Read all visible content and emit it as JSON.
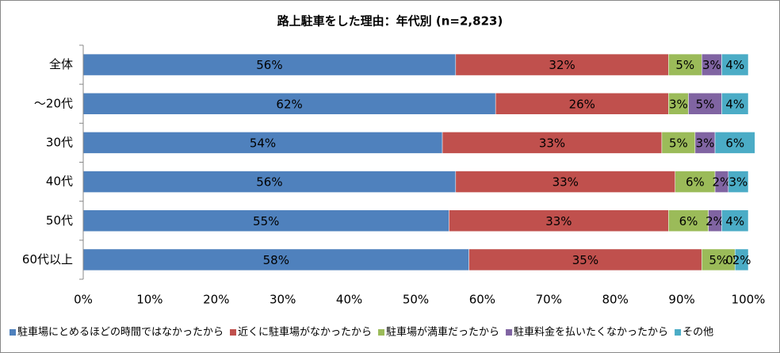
{
  "chart_data": {
    "type": "stacked-barh",
    "title": "路上駐車をした理由：年代別 (n=2,823)",
    "categories": [
      "全体",
      "～20代",
      "30代",
      "40代",
      "50代",
      "60代以上"
    ],
    "series": [
      {
        "name": "駐車場にとめるほどの時間ではなかったから",
        "color": "#4f81bd",
        "values": [
          56,
          62,
          54,
          56,
          55,
          58
        ],
        "value_labels": [
          "56%",
          "62%",
          "54%",
          "56%",
          "55%",
          "58%"
        ]
      },
      {
        "name": "近くに駐車場がなかったから",
        "color": "#c0504d",
        "values": [
          32,
          26,
          33,
          33,
          33,
          35
        ],
        "value_labels": [
          "32%",
          "26%",
          "33%",
          "33%",
          "33%",
          "35%"
        ]
      },
      {
        "name": "駐車場が満車だったから",
        "color": "#9bbb59",
        "values": [
          5,
          3,
          5,
          6,
          6,
          5
        ],
        "value_labels": [
          "5%",
          "3%",
          "5%",
          "6%",
          "6%",
          "5%"
        ]
      },
      {
        "name": "駐車料金を払いたくなかったから",
        "color": "#8064a2",
        "values": [
          3,
          5,
          3,
          2,
          2,
          0
        ],
        "value_labels": [
          "3%",
          "5%",
          "3%",
          "2%",
          "2%",
          "0%"
        ]
      },
      {
        "name": "その他",
        "color": "#4bacc6",
        "values": [
          4,
          4,
          6,
          3,
          4,
          2
        ],
        "value_labels": [
          "4%",
          "4%",
          "6%",
          "3%",
          "4%",
          "2%"
        ]
      }
    ],
    "xlim": [
      0,
      100
    ],
    "xticks": [
      {
        "value": 0,
        "label": "0%"
      },
      {
        "value": 10,
        "label": "10%"
      },
      {
        "value": 20,
        "label": "20%"
      },
      {
        "value": 30,
        "label": "30%"
      },
      {
        "value": 40,
        "label": "40%"
      },
      {
        "value": 50,
        "label": "50%"
      },
      {
        "value": 60,
        "label": "60%"
      },
      {
        "value": 70,
        "label": "70%"
      },
      {
        "value": 80,
        "label": "80%"
      },
      {
        "value": 90,
        "label": "90%"
      },
      {
        "value": 100,
        "label": "100%"
      }
    ],
    "legend": "bottom"
  }
}
